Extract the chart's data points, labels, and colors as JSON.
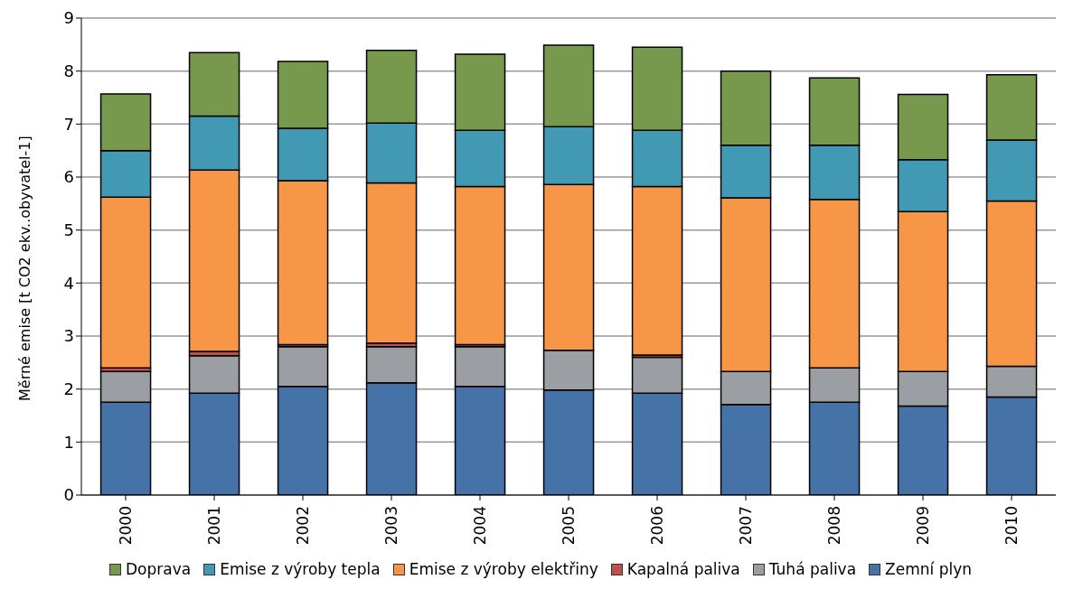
{
  "chart_data": {
    "type": "bar",
    "stacked": true,
    "ylabel": "Měrné emise [t CO2 ekv..obyvatel-1]",
    "categories": [
      "2000",
      "2001",
      "2002",
      "2003",
      "2004",
      "2005",
      "2006",
      "2007",
      "2008",
      "2009",
      "2010"
    ],
    "series": [
      {
        "name": "Zemní plyn",
        "color": "#4573a7",
        "values": [
          1.75,
          1.92,
          2.05,
          2.12,
          2.05,
          1.98,
          1.92,
          1.71,
          1.75,
          1.68,
          1.85
        ]
      },
      {
        "name": "Tuhá paliva",
        "color": "#9b9ea3",
        "values": [
          0.58,
          0.71,
          0.75,
          0.68,
          0.75,
          0.75,
          0.68,
          0.62,
          0.65,
          0.65,
          0.58
        ]
      },
      {
        "name": "Kapalná paliva",
        "color": "#c0504d",
        "values": [
          0.07,
          0.08,
          0.04,
          0.07,
          0.04,
          0,
          0.04,
          0,
          0,
          0,
          0
        ]
      },
      {
        "name": "Emise z výroby elektřiny",
        "color": "#f79646",
        "values": [
          3.22,
          3.42,
          3.09,
          3.02,
          2.98,
          3.13,
          3.18,
          3.28,
          3.18,
          3.02,
          3.12
        ]
      },
      {
        "name": "Emise z výroby tepla",
        "color": "#4299b3",
        "values": [
          0.88,
          1.02,
          0.99,
          1.13,
          1.06,
          1.09,
          1.06,
          0.99,
          1.02,
          0.98,
          1.15
        ]
      },
      {
        "name": "Doprava",
        "color": "#77994d",
        "values": [
          1.07,
          1.2,
          1.26,
          1.37,
          1.44,
          1.54,
          1.57,
          1.4,
          1.27,
          1.23,
          1.23
        ]
      }
    ],
    "ylim": [
      0,
      9
    ],
    "yticks": [
      0,
      1,
      2,
      3,
      4,
      5,
      6,
      7,
      8,
      9
    ],
    "grid": "y",
    "legend": "bottom"
  }
}
